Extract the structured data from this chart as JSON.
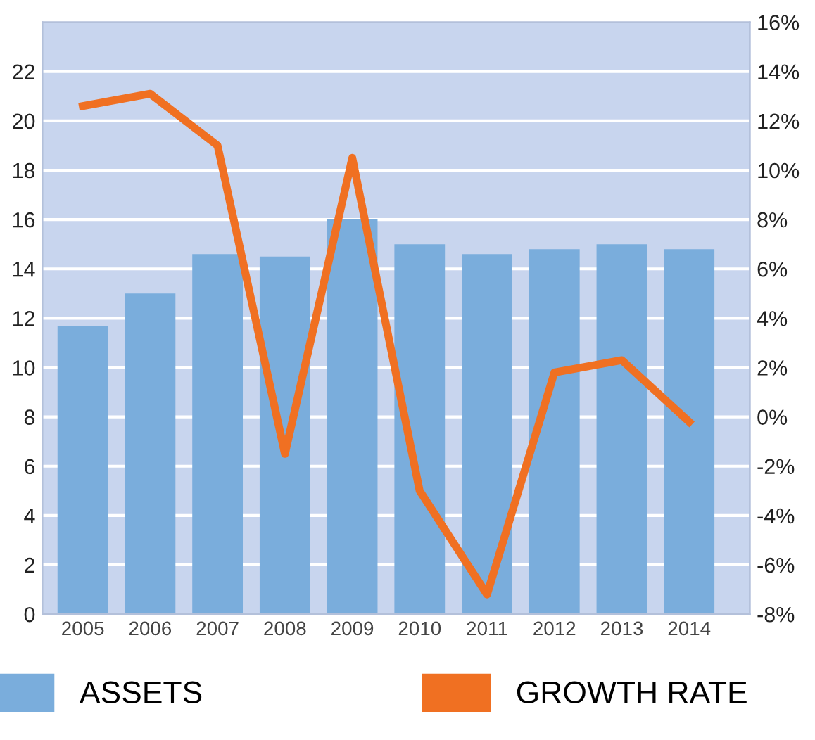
{
  "chart_data": {
    "type": "bar",
    "categories": [
      "2005",
      "2006",
      "2007",
      "2008",
      "2009",
      "2010",
      "2011",
      "2012",
      "2013",
      "2014"
    ],
    "series": [
      {
        "name": "ASSETS",
        "color": "#7aaddc",
        "values": [
          11.7,
          13.0,
          14.6,
          14.5,
          16.0,
          15.0,
          14.6,
          14.8,
          15.0,
          14.8
        ]
      },
      {
        "name": "GROWTH RATE",
        "type": "line",
        "axis": "y2",
        "color": "#f07022",
        "values": [
          12.6,
          13.1,
          11.0,
          -1.5,
          10.5,
          -3.0,
          -7.2,
          1.8,
          2.3,
          -0.2
        ]
      }
    ],
    "ylim": [
      0,
      24
    ],
    "yticks": [
      0,
      2,
      4,
      6,
      8,
      10,
      12,
      14,
      16,
      18,
      20,
      22
    ],
    "y2lim": [
      -8,
      16
    ],
    "y2ticks": [
      {
        "value": -8,
        "label": "-8%"
      },
      {
        "value": -6,
        "label": "-6%"
      },
      {
        "value": -4,
        "label": "-4%"
      },
      {
        "value": -2,
        "label": "-2%"
      },
      {
        "value": 0,
        "label": "0%"
      },
      {
        "value": 2,
        "label": "2%"
      },
      {
        "value": 4,
        "label": "4%"
      },
      {
        "value": 6,
        "label": "6%"
      },
      {
        "value": 8,
        "label": "8%"
      },
      {
        "value": 10,
        "label": "10%"
      },
      {
        "value": 12,
        "label": "12%"
      },
      {
        "value": 14,
        "label": "14%"
      },
      {
        "value": 16,
        "label": "16%"
      }
    ],
    "grid": "y",
    "legend": "bottom",
    "marker": "none",
    "line_style": "solid"
  }
}
